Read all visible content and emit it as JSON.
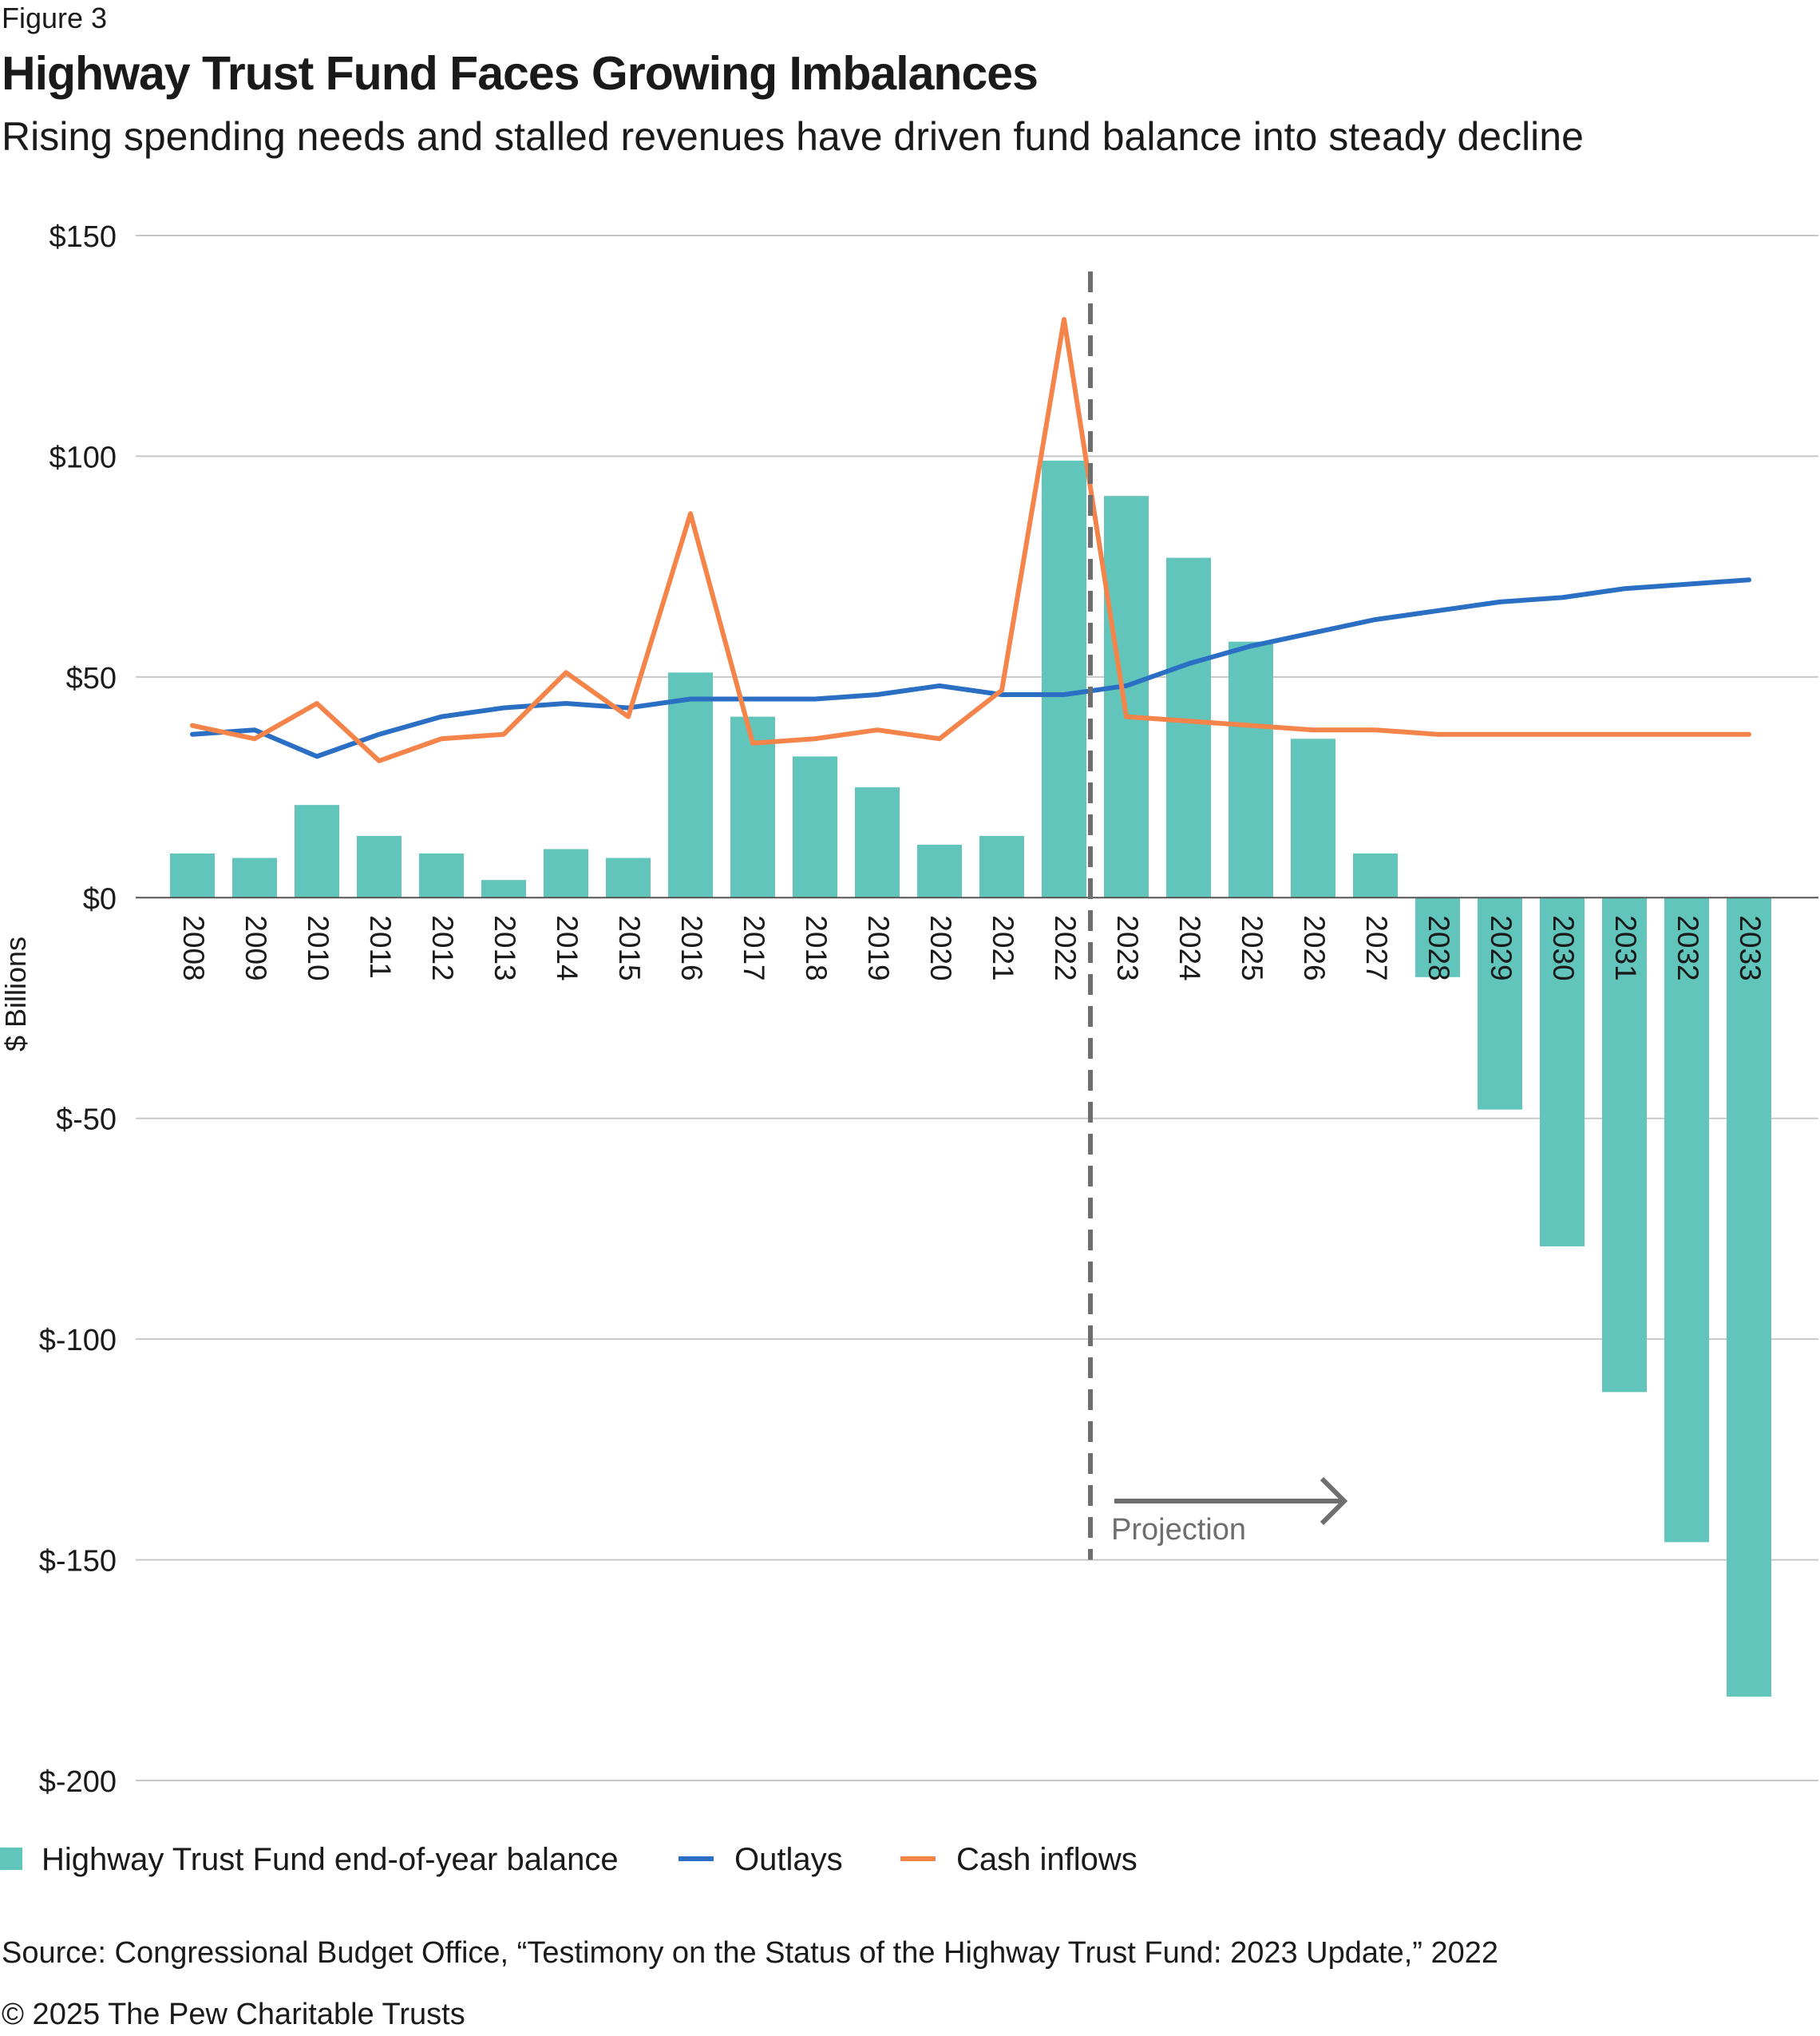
{
  "figure_label": "Figure 3",
  "title": "Highway Trust Fund Faces Growing Imbalances",
  "subtitle": "Rising spending needs and stalled revenues have driven fund balance into steady decline",
  "source": "Source: Congressional Budget Office, “Testimony on the Status of the Highway Trust Fund: 2023 Update,” 2022",
  "copyright": "© 2025 The Pew Charitable Trusts",
  "colors": {
    "balance": "#62c5bc",
    "outlays": "#2a6fc4",
    "inflows": "#f4844a",
    "grid": "#c8c8c8",
    "projection": "#6e6e6e"
  },
  "chart_data": {
    "type": "bar",
    "categories": [
      "2008",
      "2009",
      "2010",
      "2011",
      "2012",
      "2013",
      "2014",
      "2015",
      "2016",
      "2017",
      "2018",
      "2019",
      "2020",
      "2021",
      "2022",
      "2023",
      "2024",
      "2025",
      "2026",
      "2027",
      "2028",
      "2029",
      "2030",
      "2031",
      "2032",
      "2033"
    ],
    "series": [
      {
        "name": "Highway Trust Fund end-of-year balance",
        "type": "bar",
        "values": [
          10,
          9,
          21,
          14,
          10,
          4,
          11,
          9,
          51,
          41,
          32,
          25,
          12,
          14,
          99,
          91,
          77,
          58,
          36,
          10,
          -18,
          -48,
          -79,
          -112,
          -146,
          -181
        ]
      },
      {
        "name": "Outlays",
        "type": "line",
        "values": [
          37,
          38,
          32,
          37,
          41,
          43,
          44,
          43,
          45,
          45,
          45,
          46,
          48,
          46,
          46,
          48,
          53,
          57,
          60,
          63,
          65,
          67,
          68,
          70,
          71,
          72
        ]
      },
      {
        "name": "Cash inflows",
        "type": "line",
        "values": [
          39,
          36,
          44,
          31,
          36,
          37,
          51,
          41,
          87,
          35,
          36,
          38,
          36,
          47,
          131,
          41,
          40,
          39,
          38,
          38,
          37,
          37,
          37,
          37,
          37,
          37
        ]
      }
    ],
    "ylabel": "$ Billions",
    "yticks": [
      150,
      100,
      50,
      0,
      -50,
      -100,
      -150,
      -200
    ],
    "ytick_labels": [
      "$150",
      "$100",
      "$50",
      "$0",
      "$-50",
      "$-100",
      "$-150",
      "$-200"
    ],
    "ylim": [
      -200,
      150
    ],
    "grid": true,
    "legend_position": "bottom",
    "annotation": {
      "text": "Projection",
      "starts_at": "2023"
    }
  }
}
